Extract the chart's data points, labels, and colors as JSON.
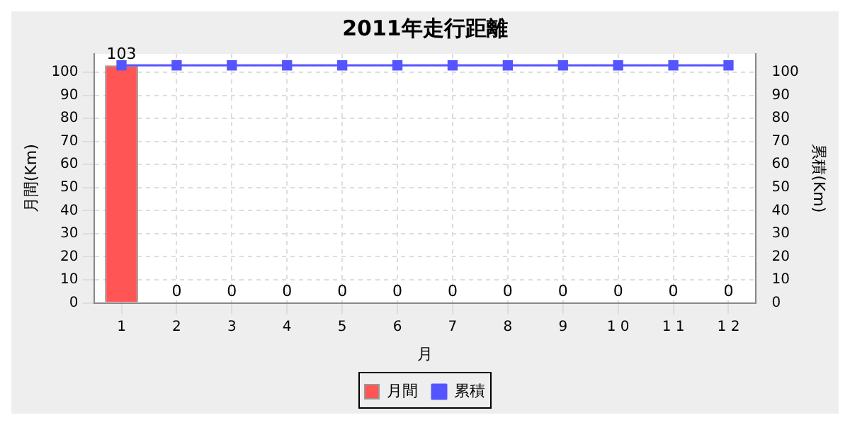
{
  "chart_data": {
    "type": "bar",
    "title": "2011年走行距離",
    "xlabel": "月",
    "ylabel": "月間(Km)",
    "y2label": "累積(Km)",
    "categories": [
      "1",
      "2",
      "3",
      "4",
      "5",
      "6",
      "7",
      "8",
      "9",
      "1 0",
      "1 1",
      "1 2"
    ],
    "series": [
      {
        "name": "月間",
        "color": "#ff5555",
        "values": [
          103,
          0,
          0,
          0,
          0,
          0,
          0,
          0,
          0,
          0,
          0,
          0
        ],
        "value_labels": [
          "103",
          "0",
          "0",
          "0",
          "0",
          "0",
          "0",
          "0",
          "0",
          "0",
          "0",
          "0"
        ]
      },
      {
        "name": "累積",
        "type": "line",
        "axis": "y2",
        "color": "#5555ff",
        "marker": "square",
        "values": [
          103,
          103,
          103,
          103,
          103,
          103,
          103,
          103,
          103,
          103,
          103,
          103
        ]
      }
    ],
    "ylim": [
      0,
      108
    ],
    "yticks": [
      0,
      10,
      20,
      30,
      40,
      50,
      60,
      70,
      80,
      90,
      100
    ],
    "y2lim": [
      0,
      108
    ],
    "y2ticks": [
      0,
      10,
      20,
      30,
      40,
      50,
      60,
      70,
      80,
      90,
      100
    ],
    "grid": true,
    "legend": "bottom"
  }
}
